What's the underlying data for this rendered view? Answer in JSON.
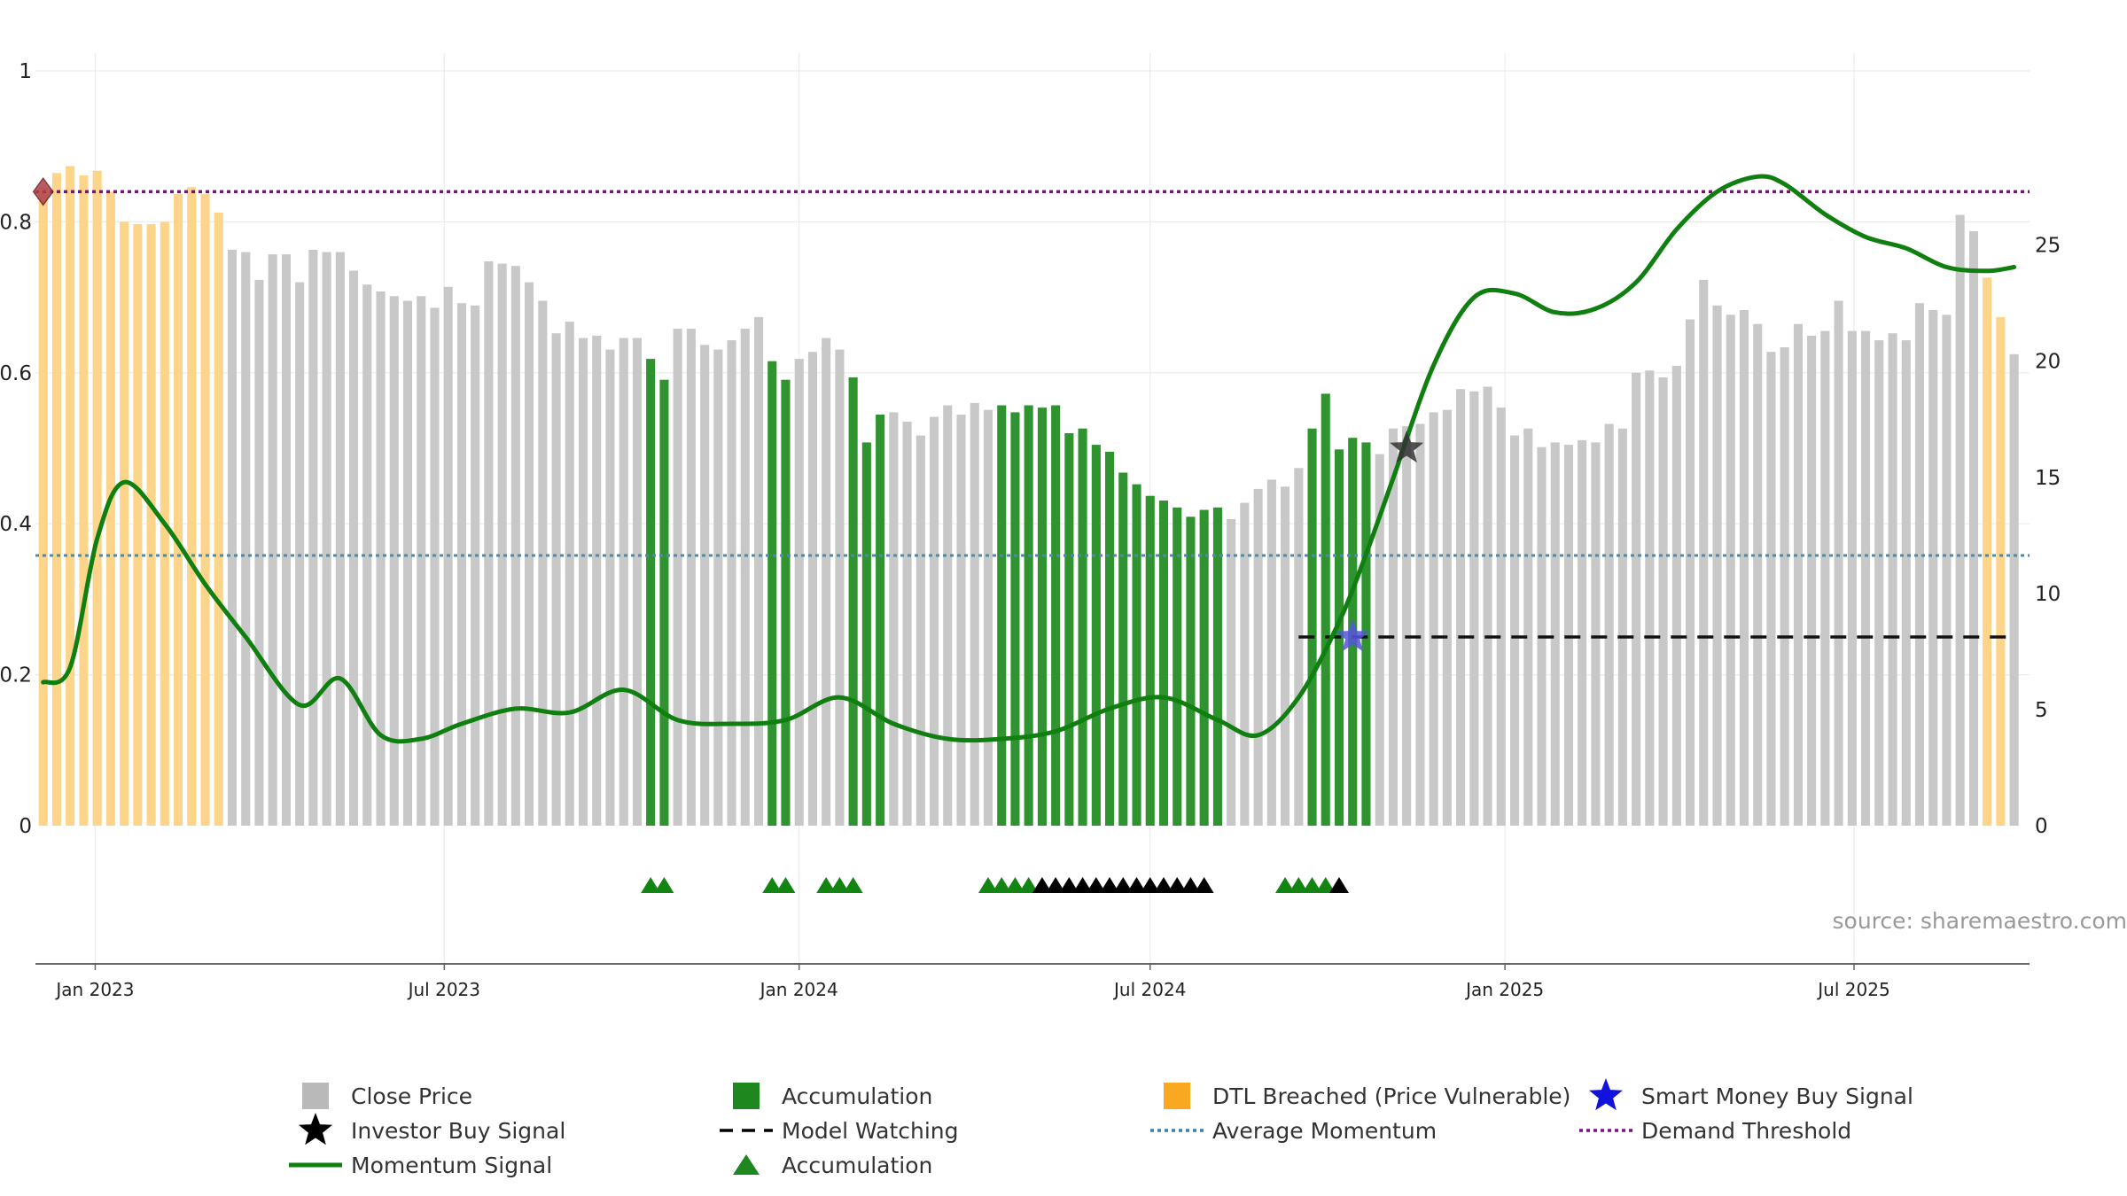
{
  "chart_data": {
    "type": "bar",
    "source": "source: sharemaestro.com",
    "colors": {
      "close": "#c8c8c8",
      "accumulation": "#2f932f",
      "dtl": "#fdd58a",
      "momentum": "#0f7f0f",
      "avg_momentum": "#4f8aa8",
      "demand": "#7f0f7f",
      "model_watch": "#111111",
      "investor_star": "#333333",
      "smart_money_star": "#5555dd"
    },
    "left_axis": {
      "min": 0,
      "max": 1,
      "ticks": [
        0,
        0.2,
        0.4,
        0.6,
        0.8,
        1
      ],
      "labels": [
        "0",
        "0.2",
        "0.4",
        "0.6",
        "0.8",
        "1"
      ]
    },
    "right_axis": {
      "min": 0,
      "max": 32.5,
      "ticks": [
        0,
        5,
        10,
        15,
        20,
        25
      ],
      "labels": [
        "0",
        "5",
        "10",
        "15",
        "20",
        "25"
      ]
    },
    "x_axis": {
      "start": "2022-12-01",
      "end": "2025-09-30",
      "ticks": [
        "2023-01-01",
        "2023-07-01",
        "2024-01-01",
        "2024-07-01",
        "2025-01-01",
        "2025-07-01"
      ],
      "labels": [
        "Jan 2023",
        "Jul 2023",
        "Jan 2024",
        "Jul 2024",
        "Jan 2025",
        "Jul 2025"
      ]
    },
    "bar_series": {
      "name": "Close Price",
      "start_date": "2022-12-05",
      "interval_days": 7,
      "values": [
        27.5,
        28.1,
        28.4,
        28.0,
        28.2,
        27.3,
        26.0,
        25.9,
        25.9,
        26.0,
        27.2,
        27.5,
        27.2,
        26.4,
        24.8,
        24.7,
        23.5,
        24.6,
        24.6,
        23.4,
        24.8,
        24.7,
        24.7,
        23.9,
        23.3,
        23.0,
        22.8,
        22.6,
        22.8,
        22.3,
        23.2,
        22.5,
        22.4,
        24.3,
        24.2,
        24.1,
        23.4,
        22.6,
        21.2,
        21.7,
        21.0,
        21.1,
        20.5,
        21.0,
        21.0,
        20.1,
        19.2,
        21.4,
        21.4,
        20.7,
        20.5,
        20.9,
        21.4,
        21.9,
        20.0,
        19.2,
        20.1,
        20.4,
        21.0,
        20.5,
        19.3,
        16.5,
        17.7,
        17.8,
        17.4,
        16.8,
        17.6,
        18.1,
        17.7,
        18.2,
        17.9,
        18.1,
        17.8,
        18.1,
        18.0,
        18.1,
        16.9,
        17.1,
        16.4,
        16.1,
        15.2,
        14.7,
        14.2,
        14.0,
        13.7,
        13.3,
        13.6,
        13.7,
        13.2,
        13.9,
        14.5,
        14.9,
        14.6,
        15.4,
        17.1,
        18.6,
        16.2,
        16.7,
        16.5,
        16.0,
        17.1,
        17.2,
        17.3,
        17.8,
        17.9,
        18.8,
        18.7,
        18.9,
        18.0,
        16.8,
        17.1,
        16.3,
        16.5,
        16.4,
        16.6,
        16.5,
        17.3,
        17.1,
        19.5,
        19.6,
        19.3,
        19.8,
        21.8,
        23.5,
        22.4,
        22.0,
        22.2,
        21.6,
        20.4,
        20.6,
        21.6,
        21.1,
        21.3,
        22.6,
        21.3,
        21.3,
        20.9,
        21.2,
        20.9,
        22.5,
        22.2,
        22.0,
        26.3,
        25.6,
        23.6,
        21.9,
        20.3
      ],
      "colors_by_index": {
        "dtl_ranges": [
          [
            0,
            13
          ],
          [
            144,
            145
          ]
        ],
        "accumulation_ranges": [
          [
            45,
            46
          ],
          [
            54,
            55
          ],
          [
            60,
            62
          ],
          [
            71,
            87
          ],
          [
            94,
            98
          ]
        ]
      }
    },
    "lines": [
      {
        "name": "Momentum Signal",
        "axis": "left",
        "x": [
          "2022-12-05",
          "2022-12-19",
          "2023-01-02",
          "2023-01-16",
          "2023-02-06",
          "2023-02-27",
          "2023-03-20",
          "2023-04-17",
          "2023-05-08",
          "2023-05-29",
          "2023-06-19",
          "2023-07-10",
          "2023-08-07",
          "2023-09-04",
          "2023-10-02",
          "2023-10-30",
          "2023-11-27",
          "2023-12-25",
          "2024-01-22",
          "2024-02-19",
          "2024-03-18",
          "2024-04-15",
          "2024-05-13",
          "2024-06-10",
          "2024-07-08",
          "2024-08-05",
          "2024-08-26",
          "2024-09-16",
          "2024-10-07",
          "2024-10-21",
          "2024-11-04",
          "2024-11-25",
          "2024-12-16",
          "2025-01-06",
          "2025-01-27",
          "2025-02-17",
          "2025-03-10",
          "2025-03-31",
          "2025-04-21",
          "2025-05-12",
          "2025-05-26",
          "2025-06-16",
          "2025-07-07",
          "2025-07-28",
          "2025-08-18",
          "2025-09-08",
          "2025-09-22"
        ],
        "y": [
          0.19,
          0.21,
          0.38,
          0.455,
          0.4,
          0.32,
          0.25,
          0.16,
          0.195,
          0.12,
          0.115,
          0.135,
          0.155,
          0.15,
          0.18,
          0.14,
          0.135,
          0.14,
          0.17,
          0.135,
          0.115,
          0.115,
          0.125,
          0.155,
          0.17,
          0.14,
          0.12,
          0.17,
          0.27,
          0.36,
          0.46,
          0.61,
          0.7,
          0.705,
          0.68,
          0.685,
          0.72,
          0.79,
          0.84,
          0.86,
          0.85,
          0.81,
          0.78,
          0.765,
          0.74,
          0.735,
          0.74
        ]
      },
      {
        "name": "Average Momentum",
        "axis": "left",
        "style": "dotted",
        "y": 0.358
      },
      {
        "name": "Demand Threshold",
        "axis": "left",
        "style": "dotted",
        "y": 0.84
      },
      {
        "name": "Model Watching",
        "axis": "left",
        "style": "dashed",
        "y": 0.25,
        "x_range": [
          "2024-09-16",
          "2025-09-22"
        ]
      }
    ],
    "markers": [
      {
        "name": "Investor Buy Signal",
        "shape": "star",
        "x": "2024-11-11",
        "y": 0.5
      },
      {
        "name": "Smart Money Buy Signal",
        "shape": "star",
        "x": "2024-10-14",
        "y": 0.25
      },
      {
        "name": "Demand Threshold",
        "shape": "diamond",
        "x": "2022-12-05",
        "y": 0.84
      }
    ],
    "triangle_track": {
      "green": [
        "2023-10-16",
        "2023-10-23",
        "2023-12-18",
        "2023-12-25",
        "2024-01-15",
        "2024-01-22",
        "2024-01-29",
        "2024-04-08",
        "2024-04-15",
        "2024-04-22",
        "2024-04-29",
        "2024-09-09",
        "2024-09-16",
        "2024-09-23",
        "2024-09-30"
      ],
      "black": [
        "2024-05-06",
        "2024-05-13",
        "2024-05-20",
        "2024-05-27",
        "2024-06-03",
        "2024-06-10",
        "2024-06-17",
        "2024-06-24",
        "2024-07-01",
        "2024-07-08",
        "2024-07-15",
        "2024-07-22",
        "2024-07-29",
        "2024-10-07"
      ]
    },
    "legend": {
      "placement": "bottom",
      "items": [
        {
          "label": "Close Price",
          "symbol": "square",
          "color": "#b9b9b9"
        },
        {
          "label": "Accumulation",
          "symbol": "square",
          "color": "#1e881e"
        },
        {
          "label": "DTL Breached (Price Vulnerable)",
          "symbol": "square",
          "color": "#f9a822"
        },
        {
          "label": "Smart Money Buy Signal",
          "symbol": "star",
          "color": "#1212dd"
        },
        {
          "label": "Investor Buy Signal",
          "symbol": "star",
          "color": "#000000"
        },
        {
          "label": "Model Watching",
          "symbol": "dash",
          "color": "#000000"
        },
        {
          "label": "Average Momentum",
          "symbol": "dot",
          "color": "#3c7ea8"
        },
        {
          "label": "Demand Threshold",
          "symbol": "dot",
          "color": "#7f0f7f"
        },
        {
          "label": "Momentum Signal",
          "symbol": "line",
          "color": "#0f7f0f"
        },
        {
          "label": "Accumulation",
          "symbol": "triangle",
          "color": "#1e881e"
        }
      ]
    }
  }
}
